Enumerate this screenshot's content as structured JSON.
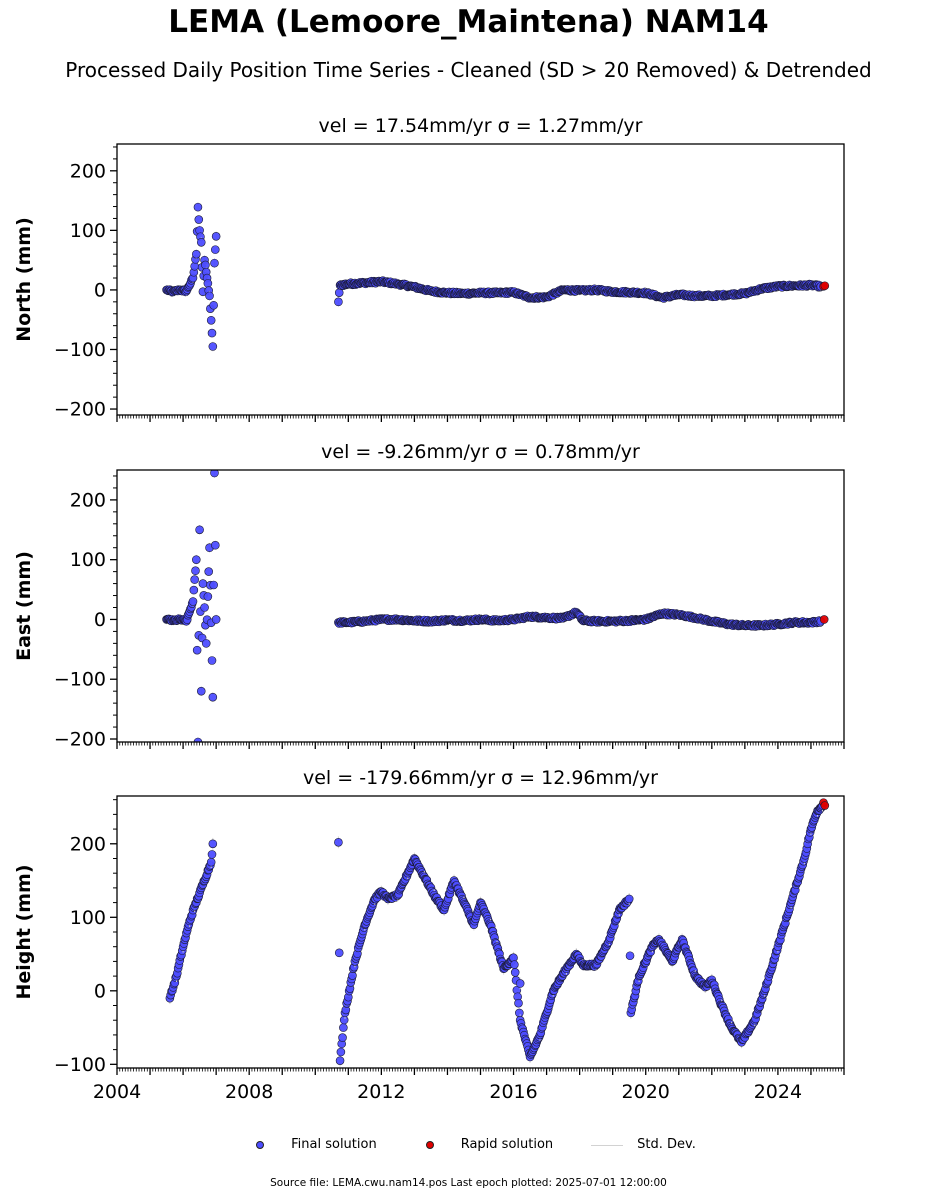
{
  "figure": {
    "title": "LEMA (Lemoore_Maintena) NAM14",
    "subtitle": "Processed Daily Position Time Series - Cleaned (SD > 20 Removed) & Detrended",
    "footer": "Source file: LEMA.cwu.nam14.pos  Last epoch plotted: 2025-07-01 12:00:00"
  },
  "colors": {
    "final": "#4d4dff",
    "rapid": "#e00000",
    "std": "#d2d2d2",
    "marker_edge": "#1a1a33"
  },
  "legend": {
    "final_label": "Final solution",
    "rapid_label": "Rapid solution",
    "std_label": "Std. Dev."
  },
  "chart_data": [
    {
      "type": "scatter",
      "title": "vel = 17.54mm/yr   σ = 1.27mm/yr",
      "ylabel": "North (mm)",
      "xlabel": "",
      "xlim": [
        2004.0,
        2026.0
      ],
      "ylim": [
        -210,
        245
      ],
      "yticks": [
        -200,
        -100,
        0,
        100,
        200
      ],
      "xticks": [],
      "grid": false,
      "series": [
        {
          "name": "Final solution",
          "x": [
            2005.5,
            2005.7,
            2005.9,
            2006.1,
            2006.3,
            2006.4,
            2006.45,
            2006.5,
            2006.55,
            2006.6,
            2006.65,
            2006.7,
            2006.8,
            2006.9,
            2006.95,
            2007.0,
            2010.7,
            2010.75,
            2011.0,
            2011.5,
            2012.0,
            2012.5,
            2013.0,
            2013.5,
            2014.0,
            2014.5,
            2015.0,
            2015.5,
            2016.0,
            2016.5,
            2017.0,
            2017.5,
            2018.0,
            2018.5,
            2019.0,
            2019.5,
            2020.0,
            2020.5,
            2021.0,
            2021.5,
            2022.0,
            2022.5,
            2023.0,
            2023.5,
            2024.0,
            2024.5,
            2025.0,
            2025.3
          ],
          "y": [
            0,
            -3,
            0,
            -2,
            20,
            60,
            139,
            100,
            80,
            -3,
            50,
            30,
            -10,
            -95,
            45,
            90,
            -20,
            8,
            10,
            12,
            14,
            10,
            5,
            -2,
            -5,
            -6,
            -5,
            -5,
            -4,
            -13,
            -12,
            0,
            -1,
            0,
            -3,
            -4,
            -5,
            -13,
            -8,
            -10,
            -10,
            -8,
            -6,
            2,
            6,
            7,
            8,
            6
          ]
        },
        {
          "name": "Rapid solution",
          "x": [
            2025.38,
            2025.42
          ],
          "y": [
            6,
            7
          ]
        }
      ]
    },
    {
      "type": "scatter",
      "title": "vel = -9.26mm/yr   σ = 0.78mm/yr",
      "ylabel": "East (mm)",
      "xlabel": "",
      "xlim": [
        2004.0,
        2026.0
      ],
      "ylim": [
        -205,
        250
      ],
      "yticks": [
        -200,
        -100,
        0,
        100,
        200
      ],
      "xticks": [],
      "grid": false,
      "series": [
        {
          "name": "Final solution",
          "x": [
            2005.5,
            2005.7,
            2005.9,
            2006.1,
            2006.3,
            2006.4,
            2006.45,
            2006.5,
            2006.55,
            2006.6,
            2006.65,
            2006.7,
            2006.8,
            2006.9,
            2006.95,
            2007.0,
            2010.7,
            2011.0,
            2011.5,
            2012.0,
            2012.5,
            2013.0,
            2013.5,
            2014.0,
            2014.5,
            2015.0,
            2015.5,
            2016.0,
            2016.5,
            2017.0,
            2017.5,
            2017.9,
            2018.1,
            2018.5,
            2019.0,
            2019.5,
            2020.0,
            2020.5,
            2021.0,
            2021.5,
            2022.0,
            2022.5,
            2023.0,
            2023.5,
            2024.0,
            2024.5,
            2025.0,
            2025.3
          ],
          "y": [
            0,
            -2,
            0,
            -3,
            30,
            100,
            -205,
            150,
            -120,
            60,
            20,
            -40,
            120,
            -130,
            245,
            0,
            -5,
            -5,
            -3,
            0,
            0,
            -2,
            -3,
            -1,
            -2,
            0,
            -2,
            0,
            5,
            3,
            2,
            12,
            -2,
            -3,
            -3,
            -2,
            0,
            10,
            8,
            3,
            -3,
            -8,
            -10,
            -10,
            -8,
            -5,
            -5,
            -3
          ]
        },
        {
          "name": "Rapid solution",
          "x": [
            2025.4
          ],
          "y": [
            0
          ]
        }
      ]
    },
    {
      "type": "scatter",
      "title": "vel = -179.66mm/yr   σ = 12.96mm/yr",
      "ylabel": "Height (mm)",
      "xlabel": "",
      "xlim": [
        2004.0,
        2026.0
      ],
      "ylim": [
        -105,
        265
      ],
      "yticks": [
        -100,
        0,
        100,
        200
      ],
      "xticks": [
        2004,
        2008,
        2012,
        2016,
        2020,
        2024
      ],
      "grid": false,
      "series": [
        {
          "name": "Final solution",
          "x": [
            2005.6,
            2005.8,
            2006.0,
            2006.2,
            2006.35,
            2006.85,
            2006.9,
            2010.7,
            2010.75,
            2010.9,
            2011.2,
            2011.5,
            2011.8,
            2012.0,
            2012.2,
            2012.5,
            2012.8,
            2013.0,
            2013.3,
            2013.6,
            2013.9,
            2014.2,
            2014.5,
            2014.8,
            2015.0,
            2015.3,
            2015.5,
            2015.7,
            2016.0,
            2016.2,
            2016.5,
            2016.8,
            2017.2,
            2017.6,
            2017.9,
            2018.1,
            2018.5,
            2018.9,
            2019.2,
            2019.5,
            2019.55,
            2019.8,
            2020.2,
            2020.4,
            2020.8,
            2021.1,
            2021.5,
            2021.8,
            2022.0,
            2022.3,
            2022.6,
            2022.9,
            2023.3,
            2023.6,
            2024.0,
            2024.4,
            2024.8,
            2025.0,
            2025.2,
            2025.35
          ],
          "y": [
            -10,
            20,
            60,
            95,
            115,
            175,
            200,
            202,
            -95,
            -30,
            40,
            90,
            125,
            135,
            125,
            130,
            160,
            180,
            155,
            130,
            110,
            150,
            120,
            90,
            120,
            90,
            60,
            30,
            45,
            -40,
            -90,
            -60,
            0,
            30,
            50,
            35,
            35,
            70,
            110,
            125,
            -30,
            20,
            60,
            70,
            40,
            70,
            20,
            5,
            15,
            -20,
            -50,
            -70,
            -40,
            0,
            60,
            120,
            180,
            220,
            245,
            252
          ],
          "extra_points": [
            [
              2016.2,
              10
            ]
          ]
        },
        {
          "name": "Rapid solution",
          "x": [
            2025.38,
            2025.42
          ],
          "y": [
            256,
            252
          ]
        }
      ]
    }
  ]
}
